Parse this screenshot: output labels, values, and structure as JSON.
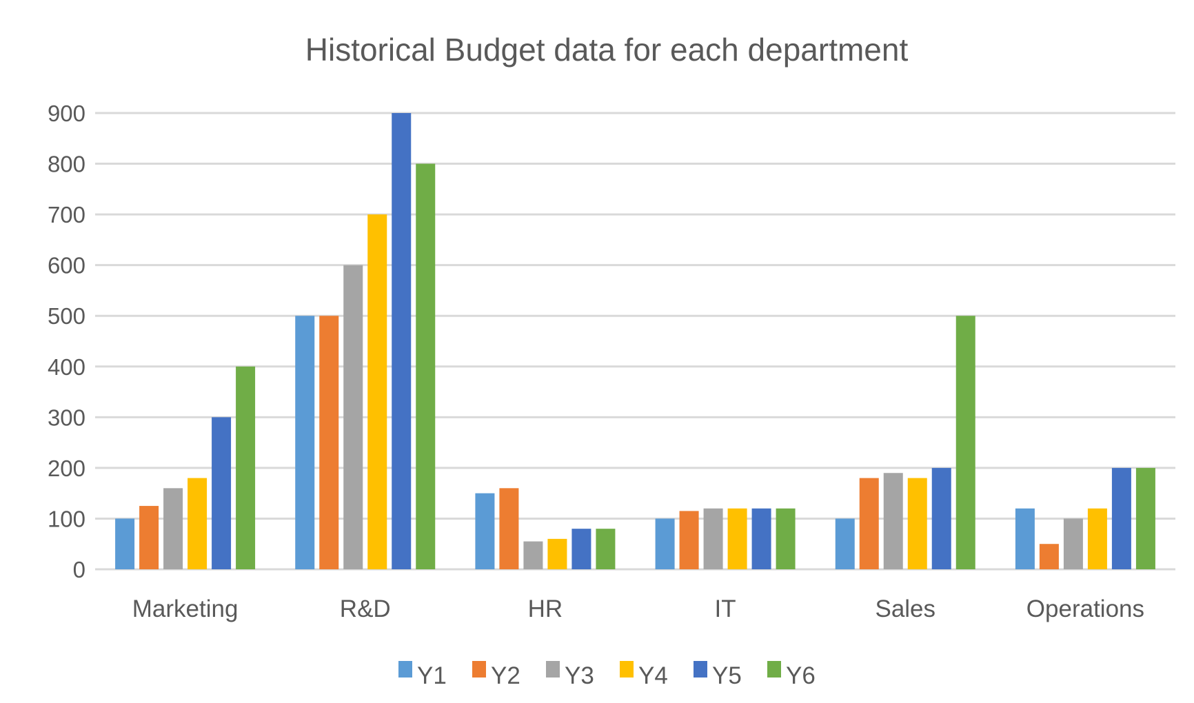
{
  "chart_data": {
    "type": "bar",
    "title": "Historical Budget data for each department",
    "xlabel": "",
    "ylabel": "",
    "categories": [
      "Marketing",
      "R&D",
      "HR",
      "IT",
      "Sales",
      "Operations"
    ],
    "series": [
      {
        "name": "Y1",
        "color": "#5B9BD5",
        "values": [
          100,
          500,
          150,
          100,
          100,
          120
        ]
      },
      {
        "name": "Y2",
        "color": "#ED7D31",
        "values": [
          125,
          500,
          160,
          115,
          180,
          50
        ]
      },
      {
        "name": "Y3",
        "color": "#A5A5A5",
        "values": [
          160,
          600,
          55,
          120,
          190,
          100
        ]
      },
      {
        "name": "Y4",
        "color": "#FFC000",
        "values": [
          180,
          700,
          60,
          120,
          180,
          120
        ]
      },
      {
        "name": "Y5",
        "color": "#4472C4",
        "values": [
          300,
          900,
          80,
          120,
          200,
          200
        ]
      },
      {
        "name": "Y6",
        "color": "#70AD47",
        "values": [
          400,
          800,
          80,
          120,
          500,
          200
        ]
      }
    ],
    "ylim": [
      0,
      900
    ],
    "yticks": [
      "0",
      "100",
      "200",
      "300",
      "400",
      "500",
      "600",
      "700",
      "800",
      "900"
    ],
    "grid": true,
    "legend": "bottom"
  }
}
